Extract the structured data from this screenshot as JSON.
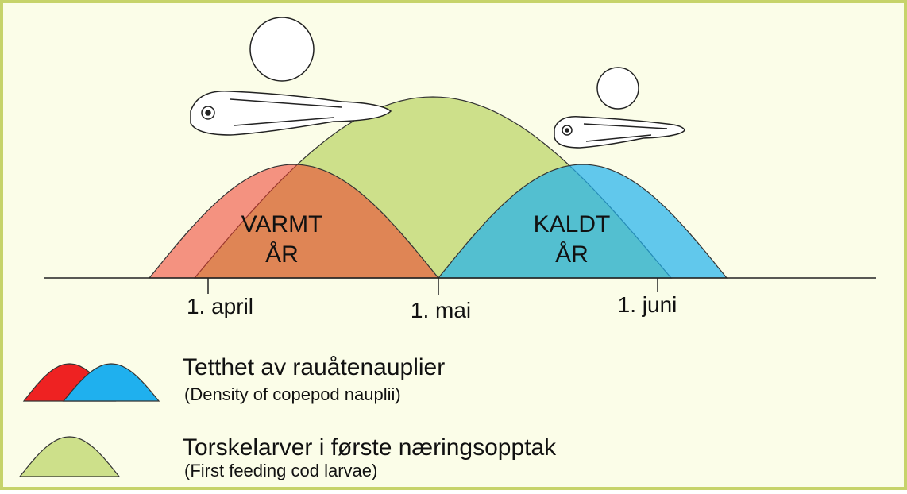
{
  "warm_label": [
    "VARMT",
    "ÅR"
  ],
  "cold_label": [
    "KALDT",
    "ÅR"
  ],
  "dates": [
    "1. april",
    "1. mai",
    "1. juni"
  ],
  "legend": [
    {
      "title": "Tetthet av rauåtenauplier",
      "subtitle": "(Density of copepod nauplii)"
    },
    {
      "title": "Torskelarver i første næringsopptak",
      "subtitle": "(First feeding cod larvae)"
    }
  ]
}
